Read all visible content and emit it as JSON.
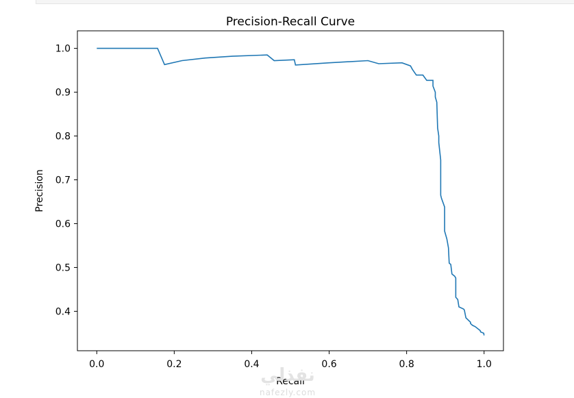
{
  "watermark": {
    "arabic": "نفذلي",
    "site": "nafezly.com"
  },
  "chart_data": {
    "type": "line",
    "title": "Precision-Recall Curve",
    "xlabel": "Recall",
    "ylabel": "Precision",
    "xlim": [
      -0.05,
      1.05
    ],
    "ylim": [
      0.31,
      1.04
    ],
    "xticks": [
      0.0,
      0.2,
      0.4,
      0.6,
      0.8,
      1.0
    ],
    "xtick_labels": [
      "0.0",
      "0.2",
      "0.4",
      "0.6",
      "0.8",
      "1.0"
    ],
    "yticks": [
      0.4,
      0.5,
      0.6,
      0.7,
      0.8,
      0.9,
      1.0
    ],
    "ytick_labels": [
      "0.4",
      "0.5",
      "0.6",
      "0.7",
      "0.8",
      "0.9",
      "1.0"
    ],
    "grid": false,
    "line_color": "#1f77b4",
    "series": [
      {
        "x": [
          0.0,
          0.157,
          0.175,
          0.22,
          0.28,
          0.35,
          0.44,
          0.458,
          0.51,
          0.513,
          0.6,
          0.7,
          0.728,
          0.788,
          0.81,
          0.815,
          0.825,
          0.842,
          0.852,
          0.868,
          0.868,
          0.874,
          0.874,
          0.878,
          0.88,
          0.883,
          0.883,
          0.888,
          0.888,
          0.89,
          0.898,
          0.898,
          0.904,
          0.908,
          0.91,
          0.914,
          0.917,
          0.924,
          0.927,
          0.927,
          0.932,
          0.935,
          0.947,
          0.949,
          0.953,
          0.965,
          0.965,
          0.97,
          0.977,
          0.99,
          0.991,
          0.999,
          1.0
        ],
        "y": [
          1.0,
          1.0,
          0.963,
          0.972,
          0.978,
          0.982,
          0.985,
          0.972,
          0.974,
          0.962,
          0.967,
          0.972,
          0.965,
          0.967,
          0.96,
          0.952,
          0.939,
          0.939,
          0.927,
          0.927,
          0.914,
          0.9,
          0.889,
          0.877,
          0.818,
          0.8,
          0.785,
          0.745,
          0.665,
          0.658,
          0.638,
          0.583,
          0.565,
          0.545,
          0.51,
          0.507,
          0.485,
          0.48,
          0.476,
          0.432,
          0.427,
          0.41,
          0.405,
          0.403,
          0.385,
          0.375,
          0.372,
          0.368,
          0.365,
          0.356,
          0.353,
          0.35,
          0.345
        ]
      }
    ]
  }
}
